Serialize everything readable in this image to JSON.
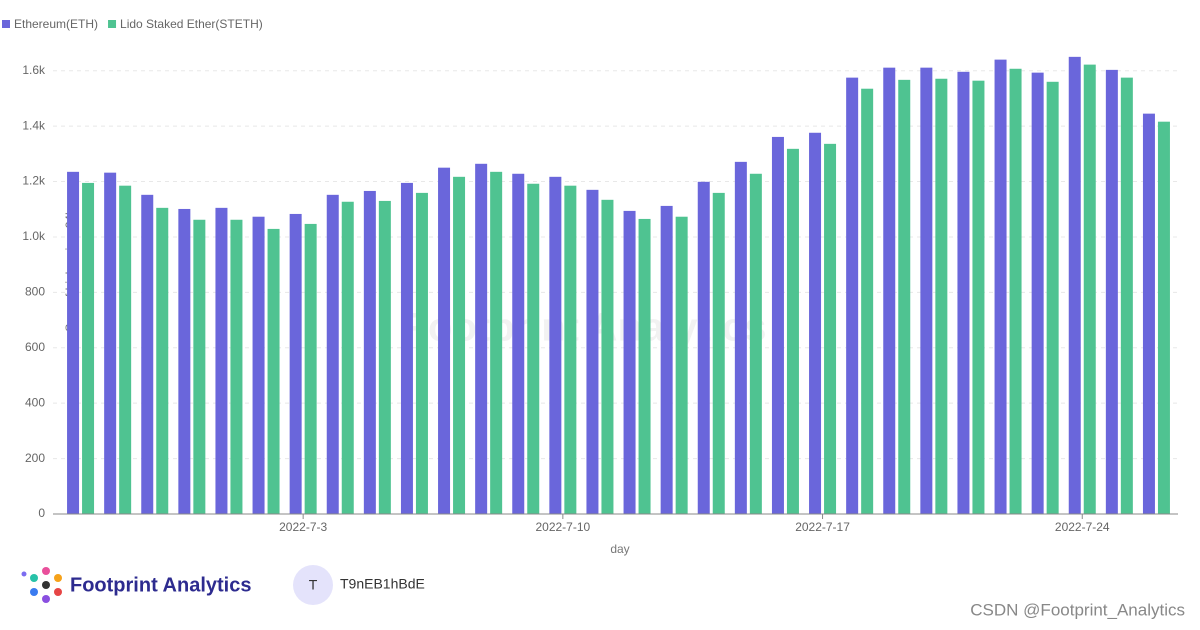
{
  "chart_data": {
    "type": "bar",
    "categories": [
      null,
      null,
      null,
      null,
      null,
      null,
      "2022-7-3",
      null,
      null,
      null,
      null,
      null,
      null,
      "2022-7-10",
      null,
      null,
      null,
      null,
      null,
      null,
      "2022-7-17",
      null,
      null,
      null,
      null,
      null,
      null,
      "2022-7-24",
      null,
      null
    ],
    "series": [
      {
        "name": "Ethereum(ETH)",
        "color": "#6a66db",
        "values": [
          1235,
          1232,
          1152,
          1101,
          1105,
          1073,
          1083,
          1152,
          1166,
          1195,
          1250,
          1264,
          1228,
          1217,
          1170,
          1094,
          1112,
          1199,
          1271,
          1361,
          1376,
          1575,
          1611,
          1611,
          1596,
          1640,
          1593,
          1650,
          1603,
          1445
        ]
      },
      {
        "name": "Lido Staked Ether(STETH)",
        "color": "#4fc391",
        "values": [
          1195,
          1185,
          1105,
          1062,
          1062,
          1029,
          1047,
          1127,
          1130,
          1159,
          1217,
          1235,
          1192,
          1185,
          1134,
          1065,
          1073,
          1159,
          1228,
          1318,
          1336,
          1535,
          1567,
          1571,
          1564,
          1607,
          1560,
          1622,
          1575,
          1416
        ]
      }
    ],
    "ylim": [
      0,
      1700
    ],
    "yticks": [
      0,
      200,
      400,
      600,
      800,
      {
        "value": 1000,
        "label": "1.0k"
      },
      {
        "value": 1200,
        "label": "1.2k"
      },
      {
        "value": 1400,
        "label": "1.4k"
      },
      {
        "value": 1600,
        "label": "1.6k"
      }
    ],
    "xlabel": "day",
    "ylabel": "Sum of high_price_24h",
    "grid": true,
    "legend": "top-left"
  },
  "watermark": "Footprint Analytics",
  "footer": {
    "brand": "Footprint Analytics",
    "avatar": "T",
    "user": "T9nEB1hBdE"
  },
  "credit": "CSDN @Footprint_Analytics"
}
